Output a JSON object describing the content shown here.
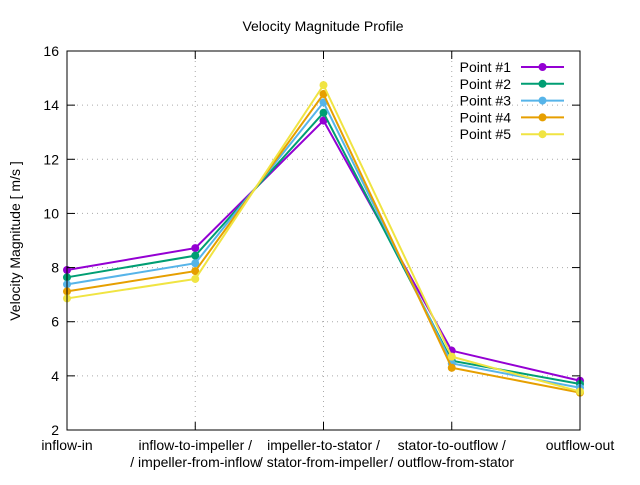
{
  "chart_data": {
    "type": "line",
    "title": "Velocity Magnitude Profile",
    "xlabel": "",
    "ylabel": "Velocity Magnitude [ m/s ]",
    "ylim": [
      2,
      16
    ],
    "yticks": [
      "2",
      "4",
      "6",
      "8",
      "10",
      "12",
      "14",
      "16"
    ],
    "grid": true,
    "legend_position": "top-right",
    "categories": [
      [
        "inflow-in"
      ],
      [
        "inflow-to-impeller /",
        "/ impeller-from-inflow"
      ],
      [
        "impeller-to-stator /",
        "/ stator-from-impeller"
      ],
      [
        "stator-to-outflow /",
        "/ outflow-from-stator"
      ],
      [
        "outflow-out"
      ]
    ],
    "series": [
      {
        "name": "Point #1",
        "color": "#9400d3",
        "values": [
          7.91,
          8.72,
          13.43,
          4.93,
          3.82
        ]
      },
      {
        "name": "Point #2",
        "color": "#009e73",
        "values": [
          7.64,
          8.44,
          13.72,
          4.56,
          3.7
        ]
      },
      {
        "name": "Point #3",
        "color": "#56b4e9",
        "values": [
          7.38,
          8.16,
          14.1,
          4.46,
          3.56
        ]
      },
      {
        "name": "Point #4",
        "color": "#e69f00",
        "values": [
          7.12,
          7.87,
          14.41,
          4.3,
          3.38
        ]
      },
      {
        "name": "Point #5",
        "color": "#f0e442",
        "values": [
          6.86,
          7.58,
          14.74,
          4.71,
          3.42
        ]
      }
    ]
  }
}
